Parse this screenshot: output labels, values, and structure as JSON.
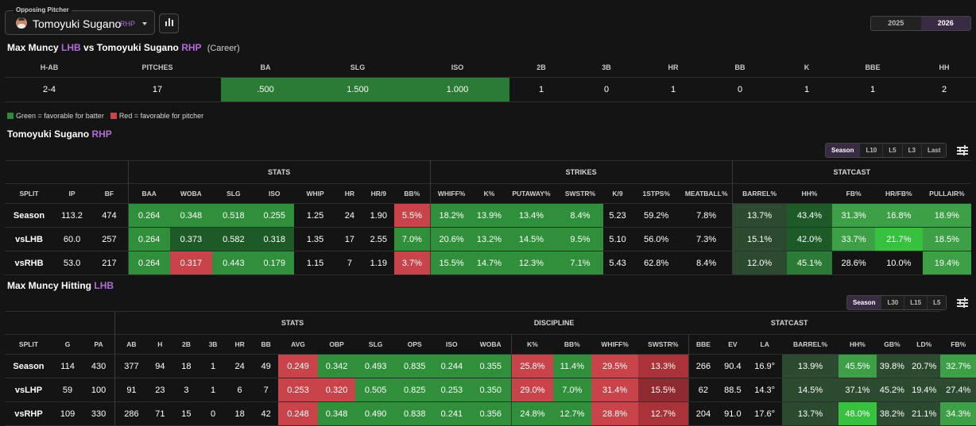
{
  "colors": {
    "g1": "#2f8f3a",
    "g2": "#3da047",
    "g3": "#2b7a35",
    "g4": "#1d5a28",
    "g5": "#2c4a30",
    "g6": "#36c23f",
    "r1": "#c9444a",
    "r2": "#a93338",
    "r3": "#8e2b31",
    "none": "#141414",
    "legend_green": "#2e8b3a",
    "legend_red": "#c9444a"
  },
  "top": {
    "selector_label": "Opposing Pitcher",
    "pitcher_name": "Tomoyuki Sugano",
    "pitcher_hand": "RHP",
    "chart_icon": "bar-chart-icon",
    "years": [
      {
        "label": "2025",
        "active": false
      },
      {
        "label": "2026",
        "active": true
      }
    ]
  },
  "matchup": {
    "title_batter": "Max Muncy",
    "title_batter_hand": "LHB",
    "title_vs": "vs",
    "title_pitcher": "Tomoyuki Sugano",
    "title_pitcher_hand": "RHP",
    "title_scope": "(Career)",
    "columns": [
      "H-AB",
      "PITCHES",
      "BA",
      "SLG",
      "ISO",
      "2B",
      "3B",
      "HR",
      "BB",
      "K",
      "BBE",
      "HH"
    ],
    "values": [
      "2-4",
      "17",
      ".500",
      "1.500",
      "1.000",
      "1",
      "0",
      "1",
      "0",
      "1",
      "1",
      "2"
    ],
    "shades": [
      "none",
      "none",
      "g3",
      "g3",
      "g3",
      "none",
      "none",
      "none",
      "none",
      "none",
      "none",
      "none"
    ]
  },
  "legend": {
    "green": "Green = favorable for batter",
    "red": "Red = favorable for pitcher"
  },
  "pitcher_table": {
    "title_name": "Tomoyuki Sugano",
    "title_hand": "RHP",
    "tabs": [
      {
        "label": "Season",
        "active": true
      },
      {
        "label": "L10",
        "active": false
      },
      {
        "label": "L5",
        "active": false
      },
      {
        "label": "L3",
        "active": false
      },
      {
        "label": "Last",
        "active": false
      }
    ],
    "groups": [
      {
        "label": "",
        "span": 3
      },
      {
        "label": "STATS",
        "span": 8
      },
      {
        "label": "STRIKES",
        "span": 7
      },
      {
        "label": "STATCAST",
        "span": 5
      }
    ],
    "columns": [
      "SPLIT",
      "IP",
      "BF",
      "BAA",
      "WOBA",
      "SLG",
      "ISO",
      "WHIP",
      "HR",
      "HR/9",
      "BB%",
      "WHIFF%",
      "K%",
      "PUTAWAY%",
      "SWSTR%",
      "K/9",
      "1STPS%",
      "MEATBALL%",
      "BARREL%",
      "HH%",
      "FB%",
      "HR/FB%",
      "PULLAIR%"
    ],
    "rows": [
      {
        "cells": [
          "Season",
          "113.2",
          "474",
          "0.264",
          "0.348",
          "0.518",
          "0.255",
          "1.25",
          "24",
          "1.90",
          "5.5%",
          "18.2%",
          "13.9%",
          "13.4%",
          "8.4%",
          "5.23",
          "59.2%",
          "7.8%",
          "13.7%",
          "43.4%",
          "31.3%",
          "16.8%",
          "18.9%"
        ],
        "shades": [
          "none",
          "none",
          "none",
          "g1",
          "g1",
          "g1",
          "g1",
          "none",
          "none",
          "none",
          "r1",
          "g1",
          "g1",
          "g1",
          "g1",
          "none",
          "none",
          "none",
          "g5",
          "g4",
          "g2",
          "g2",
          "g2"
        ]
      },
      {
        "cells": [
          "vsLHB",
          "60.0",
          "257",
          "0.264",
          "0.373",
          "0.582",
          "0.318",
          "1.35",
          "17",
          "2.55",
          "7.0%",
          "20.6%",
          "13.2%",
          "14.5%",
          "9.5%",
          "5.10",
          "56.0%",
          "7.3%",
          "15.1%",
          "42.0%",
          "33.7%",
          "21.7%",
          "18.5%"
        ],
        "shades": [
          "none",
          "none",
          "none",
          "g1",
          "g4",
          "g4",
          "g4",
          "none",
          "none",
          "none",
          "g1",
          "g1",
          "g1",
          "g1",
          "g1",
          "none",
          "none",
          "none",
          "g5",
          "g4",
          "g2",
          "g6",
          "g2"
        ]
      },
      {
        "cells": [
          "vsRHB",
          "53.0",
          "217",
          "0.264",
          "0.317",
          "0.443",
          "0.179",
          "1.15",
          "7",
          "1.19",
          "3.7%",
          "15.5%",
          "14.7%",
          "12.3%",
          "7.1%",
          "5.43",
          "62.8%",
          "8.4%",
          "12.0%",
          "45.1%",
          "28.6%",
          "10.0%",
          "19.4%"
        ],
        "shades": [
          "none",
          "none",
          "none",
          "g1",
          "r1",
          "g1",
          "g1",
          "none",
          "none",
          "none",
          "r1",
          "g1",
          "g1",
          "g1",
          "g1",
          "none",
          "none",
          "none",
          "g5",
          "g3",
          "none",
          "none",
          "g2"
        ]
      }
    ]
  },
  "hitter_table": {
    "title_name": "Max Muncy Hitting",
    "title_hand": "LHB",
    "tabs": [
      {
        "label": "Season",
        "active": true
      },
      {
        "label": "L30",
        "active": false
      },
      {
        "label": "L15",
        "active": false
      },
      {
        "label": "L5",
        "active": false
      }
    ],
    "groups": [
      {
        "label": "",
        "span": 3
      },
      {
        "label": "STATS",
        "span": 11
      },
      {
        "label": "DISCIPLINE",
        "span": 4
      },
      {
        "label": "STATCAST",
        "span": 8
      }
    ],
    "columns": [
      "SPLIT",
      "G",
      "PA",
      "AB",
      "H",
      "2B",
      "3B",
      "HR",
      "BB",
      "AVG",
      "OBP",
      "SLG",
      "OPS",
      "ISO",
      "WOBA",
      "K%",
      "BB%",
      "WHIFF%",
      "SWSTR%",
      "BBE",
      "EV",
      "LA",
      "BARREL%",
      "HH%",
      "GB%",
      "LD%",
      "FB%"
    ],
    "rows": [
      {
        "cells": [
          "Season",
          "114",
          "430",
          "377",
          "94",
          "18",
          "1",
          "24",
          "49",
          "0.249",
          "0.342",
          "0.493",
          "0.835",
          "0.244",
          "0.355",
          "25.8%",
          "11.4%",
          "29.5%",
          "13.3%",
          "266",
          "90.4",
          "16.9°",
          "13.9%",
          "45.5%",
          "39.8%",
          "20.7%",
          "32.7%"
        ],
        "shades": [
          "none",
          "none",
          "none",
          "none",
          "none",
          "none",
          "none",
          "none",
          "none",
          "r1",
          "g1",
          "g1",
          "g1",
          "g1",
          "g1",
          "r1",
          "g1",
          "r1",
          "r2",
          "none",
          "none",
          "none",
          "g5",
          "g2",
          "g5",
          "g5",
          "g2"
        ]
      },
      {
        "cells": [
          "vsLHP",
          "59",
          "100",
          "91",
          "23",
          "3",
          "1",
          "6",
          "7",
          "0.253",
          "0.320",
          "0.505",
          "0.825",
          "0.253",
          "0.350",
          "29.0%",
          "7.0%",
          "31.4%",
          "15.5%",
          "62",
          "88.5",
          "14.3°",
          "14.5%",
          "37.1%",
          "45.2%",
          "19.4%",
          "27.4%"
        ],
        "shades": [
          "none",
          "none",
          "none",
          "none",
          "none",
          "none",
          "none",
          "none",
          "none",
          "r1",
          "r1",
          "g1",
          "g1",
          "g1",
          "g1",
          "r1",
          "g1",
          "r1",
          "r3",
          "none",
          "none",
          "none",
          "g5",
          "g5",
          "g5",
          "g5",
          "g5"
        ]
      },
      {
        "cells": [
          "vsRHP",
          "109",
          "330",
          "286",
          "71",
          "15",
          "0",
          "18",
          "42",
          "0.248",
          "0.348",
          "0.490",
          "0.838",
          "0.241",
          "0.356",
          "24.8%",
          "12.7%",
          "28.8%",
          "12.7%",
          "204",
          "91.0",
          "17.6°",
          "13.7%",
          "48.0%",
          "38.2%",
          "21.1%",
          "34.3%"
        ],
        "shades": [
          "none",
          "none",
          "none",
          "none",
          "none",
          "none",
          "none",
          "none",
          "none",
          "r1",
          "g1",
          "g1",
          "g1",
          "g1",
          "g1",
          "g1",
          "g1",
          "r1",
          "r2",
          "none",
          "none",
          "none",
          "g5",
          "g6",
          "g5",
          "g5",
          "g2"
        ]
      }
    ]
  }
}
